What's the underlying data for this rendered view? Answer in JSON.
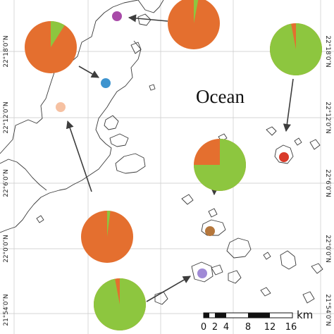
{
  "map": {
    "ocean_label": "Ocean",
    "latitude_labels": [
      "22°18′0″N",
      "22°12′0″N",
      "22°6′0″N",
      "22°0′0″N",
      "21°54′0″N"
    ],
    "latitude_labels_right": [
      "22°18′0″N",
      "22°12′0″N",
      "22°6′0″N",
      "22°0′0″N",
      "21°54′0″N"
    ],
    "scale_bar": {
      "ticks": [
        "0",
        "2",
        "4",
        "8",
        "12",
        "16"
      ],
      "unit": "km"
    },
    "colors": {
      "orange": "#e46f2f",
      "green": "#8dc63f",
      "marker_purple": "#a84aa8",
      "marker_blue": "#3e94cf",
      "marker_peach": "#f6c1a2",
      "marker_red": "#d93a2a",
      "marker_brown": "#b5773c",
      "marker_lavender": "#a08ad6"
    },
    "pies": [
      {
        "name": "pie-top-center",
        "green_fraction": 0.03,
        "marker_color": "#a84aa8"
      },
      {
        "name": "pie-top-left",
        "green_fraction": 0.09,
        "marker_color": "#3e94cf"
      },
      {
        "name": "pie-top-right",
        "green_fraction": 0.97,
        "marker_color": "#d93a2a"
      },
      {
        "name": "pie-middle-right",
        "green_fraction": 0.75,
        "marker_color": "#b5773c"
      },
      {
        "name": "pie-bottom-left",
        "green_fraction": 0.02,
        "marker_color": "#f6c1a2"
      },
      {
        "name": "pie-bottom-center",
        "green_fraction": 0.97,
        "marker_color": "#a08ad6"
      }
    ]
  }
}
